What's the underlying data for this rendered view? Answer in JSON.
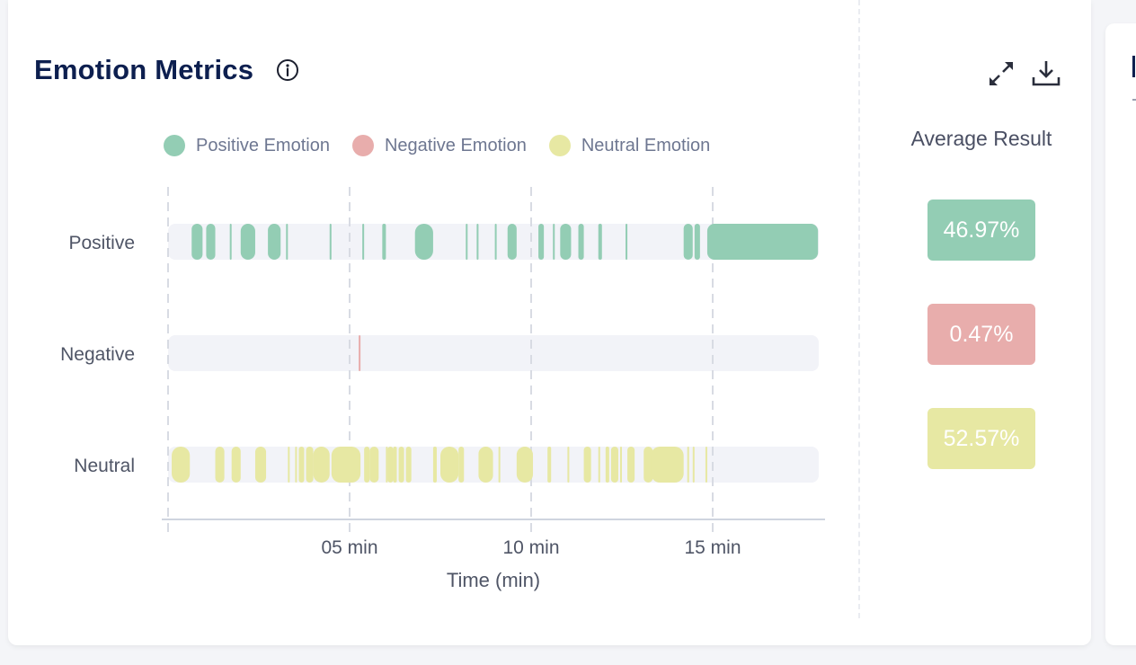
{
  "title": "Emotion Metrics",
  "icons": {
    "info": "info-circle-icon",
    "expand": "expand-icon",
    "download": "download-icon"
  },
  "colors": {
    "positive": "#93cdb4",
    "negative": "#e8adac",
    "neutral": "#e7e8a3",
    "track": "#f2f3f8",
    "title": "#0d1f4f"
  },
  "average": {
    "title": "Average Result",
    "positive": "46.97%",
    "negative": "0.47%",
    "neutral": "52.57%"
  },
  "chart_data": {
    "type": "timeline",
    "xlabel": "Time (min)",
    "xlim": [
      0,
      17.9
    ],
    "xticks": [
      5,
      10,
      15
    ],
    "xtick_labels": [
      "05 min",
      "10 min",
      "15 min"
    ],
    "grid": true,
    "legend_position": "top",
    "series": [
      {
        "name": "Positive Emotion",
        "row_label": "Positive",
        "segments": [
          [
            0.65,
            0.95
          ],
          [
            1.05,
            1.3
          ],
          [
            1.7,
            1.75
          ],
          [
            2.0,
            2.4
          ],
          [
            2.75,
            3.1
          ],
          [
            3.25,
            3.3
          ],
          [
            4.45,
            4.5
          ],
          [
            5.35,
            5.4
          ],
          [
            5.9,
            6.0
          ],
          [
            6.8,
            7.3
          ],
          [
            8.2,
            8.25
          ],
          [
            8.5,
            8.55
          ],
          [
            9.0,
            9.05
          ],
          [
            9.35,
            9.6
          ],
          [
            10.2,
            10.35
          ],
          [
            10.6,
            10.65
          ],
          [
            10.8,
            11.1
          ],
          [
            11.3,
            11.45
          ],
          [
            11.85,
            11.95
          ],
          [
            12.6,
            12.65
          ],
          [
            14.2,
            14.45
          ],
          [
            14.5,
            14.65
          ],
          [
            14.85,
            17.9
          ]
        ]
      },
      {
        "name": "Negative Emotion",
        "row_label": "Negative",
        "segments": [
          [
            5.25,
            5.3
          ]
        ]
      },
      {
        "name": "Neutral Emotion",
        "row_label": "Neutral",
        "segments": [
          [
            0.1,
            0.6
          ],
          [
            1.3,
            1.55
          ],
          [
            1.75,
            2.0
          ],
          [
            2.4,
            2.7
          ],
          [
            3.3,
            3.35
          ],
          [
            3.5,
            3.55
          ],
          [
            3.6,
            3.75
          ],
          [
            3.8,
            4.0
          ],
          [
            4.0,
            4.45
          ],
          [
            4.5,
            5.3
          ],
          [
            5.4,
            5.55
          ],
          [
            5.55,
            5.8
          ],
          [
            6.0,
            6.05
          ],
          [
            6.05,
            6.2
          ],
          [
            6.2,
            6.3
          ],
          [
            6.35,
            6.5
          ],
          [
            6.55,
            6.7
          ],
          [
            7.3,
            7.4
          ],
          [
            7.5,
            8.0
          ],
          [
            8.0,
            8.15
          ],
          [
            8.55,
            8.95
          ],
          [
            9.1,
            9.15
          ],
          [
            9.6,
            10.05
          ],
          [
            10.45,
            10.55
          ],
          [
            11.0,
            11.05
          ],
          [
            11.45,
            11.65
          ],
          [
            11.85,
            11.9
          ],
          [
            12.05,
            12.15
          ],
          [
            12.2,
            12.4
          ],
          [
            12.45,
            12.5
          ],
          [
            12.65,
            12.85
          ],
          [
            13.1,
            13.35
          ],
          [
            13.3,
            14.2
          ],
          [
            14.3,
            14.35
          ],
          [
            14.45,
            14.5
          ],
          [
            14.8,
            14.85
          ]
        ]
      }
    ]
  }
}
